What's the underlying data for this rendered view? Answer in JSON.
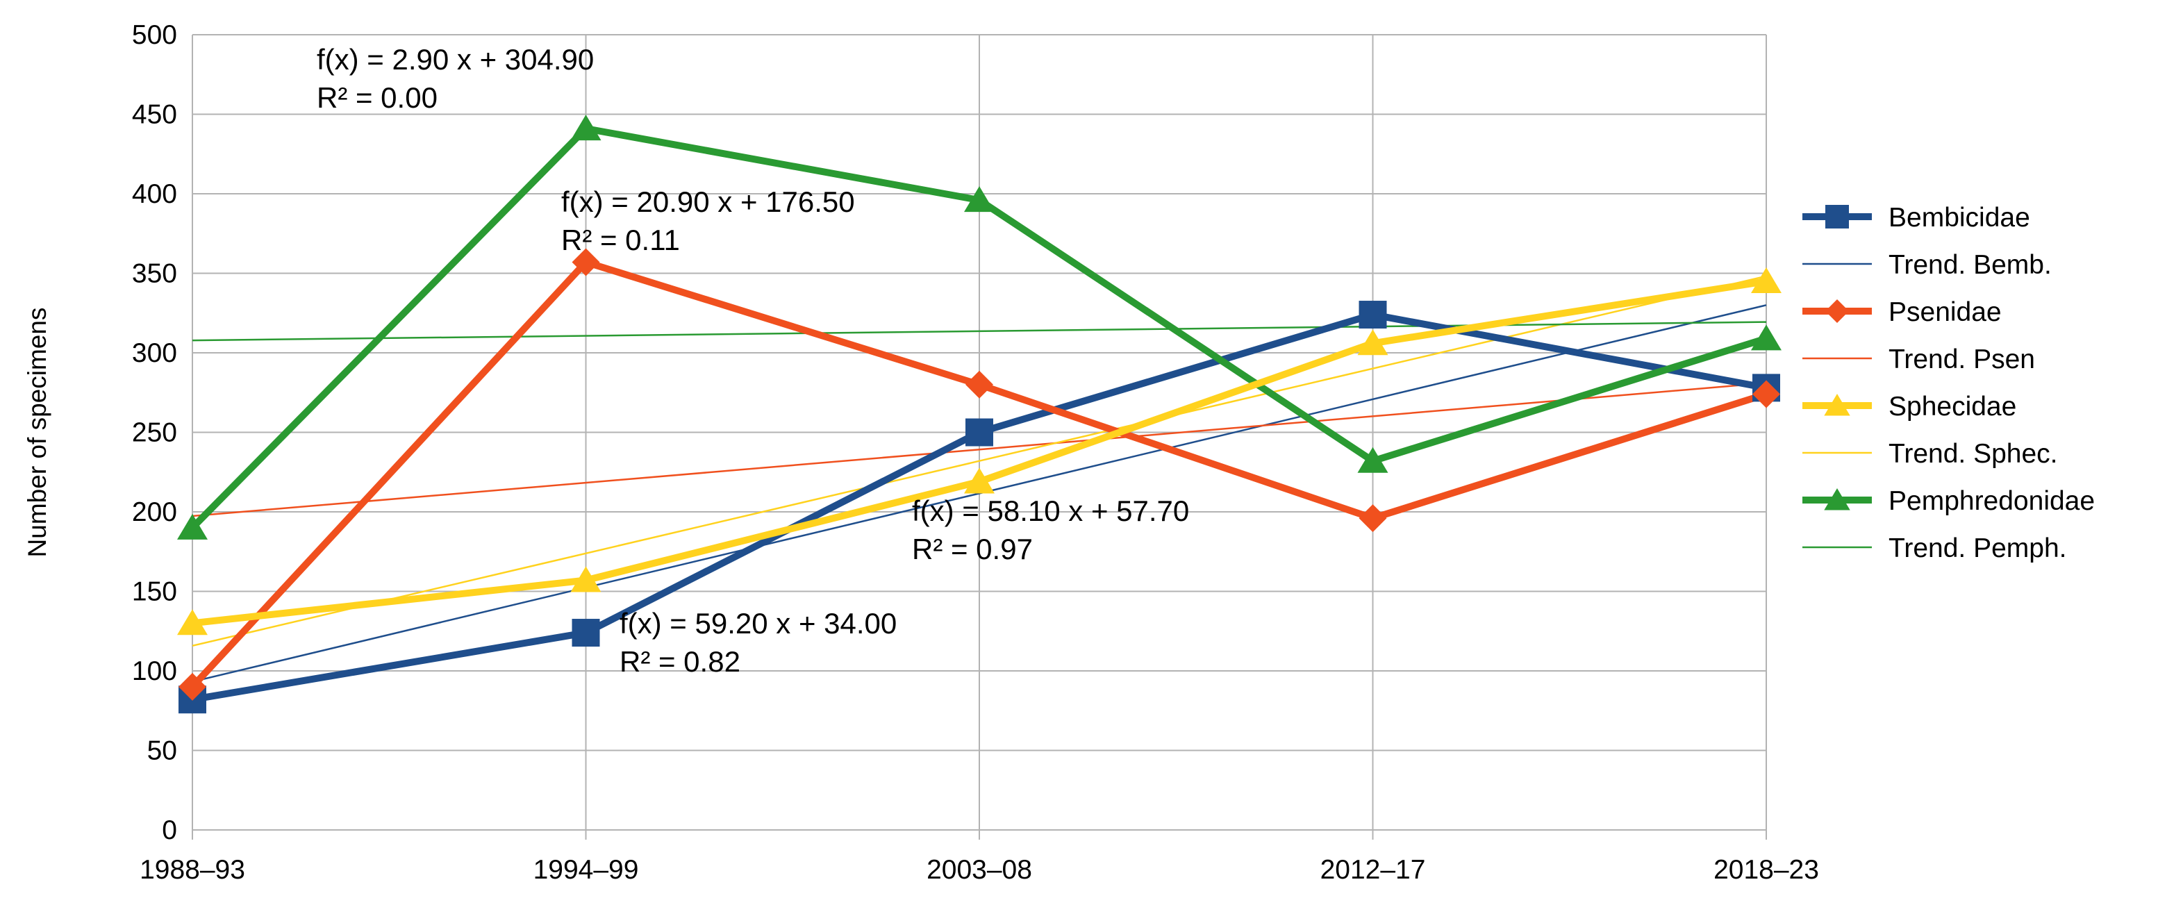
{
  "chart_data": {
    "type": "line",
    "title": "",
    "xlabel": "",
    "ylabel": "Number of specimens",
    "categories": [
      "1988–93",
      "1994–99",
      "2003–08",
      "2012–17",
      "2018–23"
    ],
    "ylim": [
      0,
      500
    ],
    "yticks": [
      0,
      50,
      100,
      150,
      200,
      250,
      300,
      350,
      400,
      450,
      500
    ],
    "grid": true,
    "legend_position": "right",
    "series": [
      {
        "name": "Bembicidae",
        "values": [
          82,
          124,
          250,
          324,
          278
        ],
        "color": "#1f4e8c",
        "marker": "square"
      },
      {
        "name": "Psenidae",
        "values": [
          90,
          357,
          280,
          196,
          274
        ],
        "color": "#f0501e",
        "marker": "diamond"
      },
      {
        "name": "Sphecidae",
        "values": [
          130,
          157,
          219,
          306,
          345
        ],
        "color": "#ffd21e",
        "marker": "triangle"
      },
      {
        "name": "Pemphredonidae",
        "values": [
          190,
          441,
          396,
          232,
          309
        ],
        "color": "#2a9a32",
        "marker": "triangle"
      }
    ],
    "trendlines": [
      {
        "name": "Trend. Bemb.",
        "slope": 59.2,
        "intercept": 34.0,
        "color": "#1f4e8c"
      },
      {
        "name": "Trend. Psen",
        "slope": 20.9,
        "intercept": 176.5,
        "color": "#f0501e"
      },
      {
        "name": "Trend. Sphec.",
        "slope": 58.1,
        "intercept": 57.7,
        "color": "#ffd21e"
      },
      {
        "name": "Trend. Pemph.",
        "slope": 2.9,
        "intercept": 304.9,
        "color": "#2a9a32"
      }
    ],
    "annotations": [
      {
        "eq": "f(x) = 2.90 x + 304.90",
        "r2": "R² = 0.00"
      },
      {
        "eq": "f(x) = 20.90 x + 176.50",
        "r2": "R² = 0.11"
      },
      {
        "eq": "f(x) = 58.10 x + 57.70",
        "r2": "R² = 0.97"
      },
      {
        "eq": "f(x) = 59.20 x + 34.00",
        "r2": "R² = 0.82"
      }
    ],
    "legend": [
      "Bembicidae",
      "Trend. Bemb.",
      "Psenidae",
      "Trend. Psen",
      "Sphecidae",
      "Trend. Sphec.",
      "Pemphredonidae",
      "Trend. Pemph."
    ]
  }
}
